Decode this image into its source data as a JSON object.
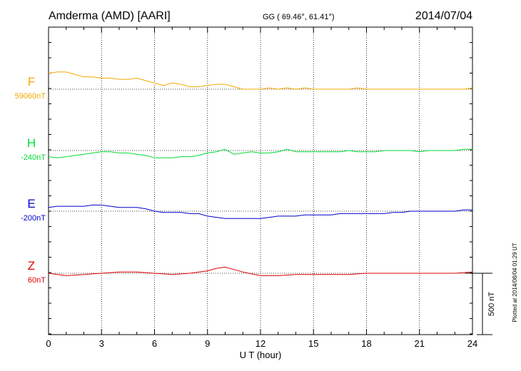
{
  "header": {
    "station": "Amderma (AMD)  [AARI]",
    "coords": "GG ( 69.46°,  61.41°)",
    "date": "2014/07/04"
  },
  "footer_note": "Plotted at 2014/08/04 01:29 UT",
  "scale_label": "500 nT",
  "colors": {
    "F": "#f5a800",
    "H": "#00dd33",
    "E": "#0000cc",
    "Z": "#dd0000"
  },
  "chart_data": {
    "type": "line",
    "xlabel": "U T (hour)",
    "xlim": [
      0,
      24
    ],
    "xticks": [
      0,
      3,
      6,
      9,
      12,
      15,
      18,
      21,
      24
    ],
    "scale_bar_nT": 500,
    "series": [
      {
        "name": "F",
        "baseline_label": "59060nT",
        "baseline": 59060,
        "x": [
          0,
          0.5,
          1,
          1.5,
          2,
          2.5,
          3,
          3.5,
          4,
          4.5,
          5,
          5.5,
          6,
          6.5,
          7,
          7.5,
          8,
          8.5,
          9,
          9.5,
          10,
          10.5,
          11,
          11.5,
          12,
          12.5,
          13,
          13.5,
          14,
          14.5,
          15,
          15.5,
          16,
          16.5,
          17,
          17.5,
          18,
          18.5,
          19,
          19.5,
          20,
          20.5,
          21,
          21.5,
          22,
          22.5,
          23,
          23.5,
          24
        ],
        "y": [
          59190,
          59200,
          59200,
          59180,
          59160,
          59160,
          59150,
          59150,
          59140,
          59140,
          59150,
          59130,
          59110,
          59090,
          59110,
          59100,
          59080,
          59080,
          59090,
          59100,
          59100,
          59080,
          59060,
          59060,
          59060,
          59070,
          59060,
          59070,
          59060,
          59070,
          59060,
          59060,
          59060,
          59060,
          59060,
          59070,
          59060,
          59060,
          59060,
          59060,
          59060,
          59060,
          59060,
          59060,
          59060,
          59060,
          59060,
          59060,
          59070
        ]
      },
      {
        "name": "H",
        "baseline_label": "-240nT",
        "baseline": -240,
        "x": [
          0,
          0.5,
          1,
          1.5,
          2,
          2.5,
          3,
          3.5,
          4,
          4.5,
          5,
          5.5,
          6,
          6.5,
          7,
          7.5,
          8,
          8.5,
          9,
          9.5,
          10,
          10.5,
          11,
          11.5,
          12,
          12.5,
          13,
          13.5,
          14,
          14.5,
          15,
          15.5,
          16,
          16.5,
          17,
          17.5,
          18,
          18.5,
          19,
          19.5,
          20,
          20.5,
          21,
          21.5,
          22,
          22.5,
          23,
          23.5,
          24
        ],
        "y": [
          -290,
          -300,
          -290,
          -280,
          -270,
          -260,
          -250,
          -250,
          -260,
          -260,
          -270,
          -280,
          -300,
          -300,
          -300,
          -290,
          -290,
          -280,
          -260,
          -250,
          -230,
          -270,
          -260,
          -250,
          -260,
          -260,
          -250,
          -230,
          -250,
          -250,
          -250,
          -250,
          -250,
          -250,
          -240,
          -250,
          -250,
          -250,
          -240,
          -240,
          -240,
          -240,
          -250,
          -240,
          -240,
          -240,
          -240,
          -230,
          -230
        ]
      },
      {
        "name": "E",
        "baseline_label": "-200nT",
        "baseline": -200,
        "x": [
          0,
          0.5,
          1,
          1.5,
          2,
          2.5,
          3,
          3.5,
          4,
          4.5,
          5,
          5.5,
          6,
          6.5,
          7,
          7.5,
          8,
          8.5,
          9,
          9.5,
          10,
          10.5,
          11,
          11.5,
          12,
          12.5,
          13,
          13.5,
          14,
          14.5,
          15,
          15.5,
          16,
          16.5,
          17,
          17.5,
          18,
          18.5,
          19,
          19.5,
          20,
          20.5,
          21,
          21.5,
          22,
          22.5,
          23,
          23.5,
          24
        ],
        "y": [
          -170,
          -160,
          -160,
          -160,
          -160,
          -150,
          -150,
          -160,
          -170,
          -170,
          -170,
          -180,
          -200,
          -210,
          -210,
          -210,
          -220,
          -220,
          -240,
          -250,
          -260,
          -260,
          -260,
          -260,
          -260,
          -250,
          -240,
          -240,
          -240,
          -230,
          -230,
          -230,
          -230,
          -220,
          -220,
          -220,
          -220,
          -220,
          -220,
          -210,
          -210,
          -200,
          -200,
          -200,
          -200,
          -200,
          -200,
          -190,
          -190
        ]
      },
      {
        "name": "Z",
        "baseline_label": "60nT",
        "baseline": 60,
        "x": [
          0,
          1,
          2,
          3,
          4,
          5,
          6,
          7,
          8,
          9,
          9.5,
          10,
          10.5,
          11,
          12,
          13,
          14,
          15,
          16,
          17,
          18,
          19,
          20,
          21,
          22,
          23,
          24
        ],
        "y": [
          60,
          40,
          50,
          60,
          70,
          70,
          60,
          50,
          60,
          80,
          100,
          110,
          90,
          70,
          40,
          40,
          50,
          50,
          50,
          50,
          60,
          60,
          60,
          60,
          60,
          60,
          70
        ]
      }
    ]
  }
}
